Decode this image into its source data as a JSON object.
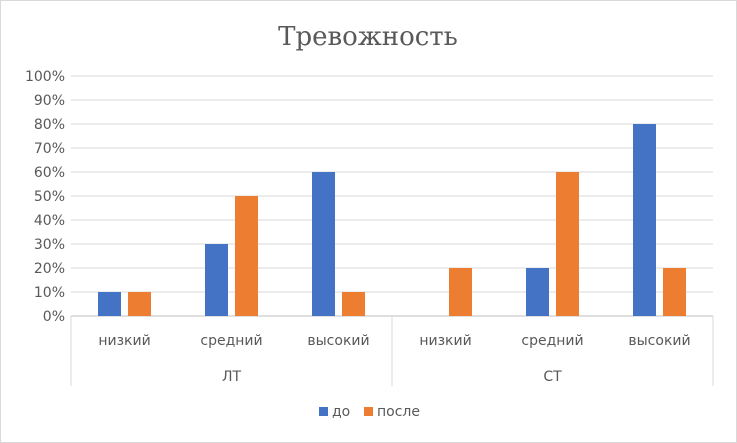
{
  "chart_data": {
    "type": "bar",
    "title": "Тревожность",
    "groups": [
      "ЛТ",
      "СТ"
    ],
    "categories": [
      "низкий",
      "средний",
      "высокий",
      "низкий",
      "средний",
      "высокий"
    ],
    "category_groups": [
      0,
      0,
      0,
      1,
      1,
      1
    ],
    "series": [
      {
        "name": "до",
        "color": "#4472C4",
        "values": [
          10,
          30,
          60,
          0,
          20,
          80
        ]
      },
      {
        "name": "после",
        "color": "#ED7D31",
        "values": [
          10,
          50,
          10,
          20,
          60,
          20
        ]
      }
    ],
    "ylim": [
      0,
      100
    ],
    "yticks": [
      "0%",
      "10%",
      "20%",
      "30%",
      "40%",
      "50%",
      "60%",
      "70%",
      "80%",
      "90%",
      "100%"
    ],
    "grid": true,
    "legend_position": "bottom"
  }
}
